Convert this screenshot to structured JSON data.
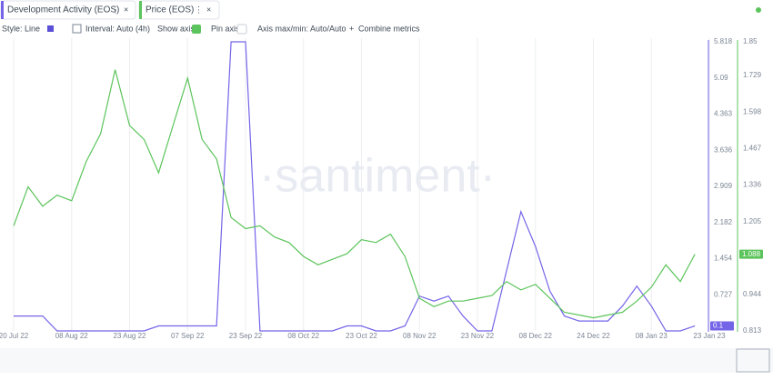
{
  "ui": {
    "toolbar": {
      "style": "Style: Line",
      "interval": "Interval: Auto (4h)",
      "show_axis": "Show axis",
      "pin_axis": "Pin axis",
      "axis_minmax": "Axis max/min: Auto/Auto",
      "combine": "Combine metrics"
    },
    "watermark": "·santiment·"
  },
  "chart_data": {
    "type": "line",
    "categories": [
      "20 Jul 22",
      null,
      null,
      null,
      "08 Aug 22",
      null,
      null,
      null,
      "23 Aug 22",
      null,
      null,
      null,
      "07 Sep 22",
      null,
      null,
      null,
      "23 Sep 22",
      null,
      null,
      null,
      "08 Oct 22",
      null,
      null,
      null,
      "23 Oct 22",
      null,
      null,
      null,
      "08 Nov 22",
      null,
      null,
      null,
      "23 Nov 22",
      null,
      null,
      null,
      "08 Dec 22",
      null,
      null,
      null,
      "24 Dec 22",
      null,
      null,
      null,
      "08 Jan 23",
      null,
      null,
      null,
      "23 Jan 23"
    ],
    "ylim": [
      0,
      5.818
    ],
    "yticks": [
      0.727,
      1.454,
      2.182,
      2.909,
      3.636,
      4.363,
      5.09,
      5.818
    ],
    "y2lim": [
      0.813,
      1.85
    ],
    "y2ticks": [
      0.813,
      0.944,
      1.205,
      1.336,
      1.467,
      1.598,
      1.729,
      1.85
    ],
    "grid_x": true,
    "series": [
      {
        "name": "Development Activity (EOS)",
        "color": "#7464e8",
        "axis": "y",
        "last_label": "0.1",
        "values": [
          0.3,
          0.3,
          0.3,
          0,
          0,
          0,
          0,
          0,
          0,
          0,
          0.1,
          0.1,
          0.1,
          0.1,
          0.1,
          5.818,
          5.818,
          0,
          0,
          0,
          0,
          0,
          0,
          0.1,
          0.1,
          0,
          0,
          0.1,
          0.7,
          0.6,
          0.7,
          0.3,
          0,
          0,
          1.2,
          2.4,
          1.7,
          0.8,
          0.3,
          0.2,
          0.2,
          0.2,
          0.5,
          0.9,
          0.5,
          0,
          0,
          0.1,
          null
        ]
      },
      {
        "name": "Price (EOS)",
        "color": "#5cc45c",
        "axis": "y2",
        "last_label": "1.088",
        "values": [
          1.19,
          1.33,
          1.26,
          1.3,
          1.28,
          1.42,
          1.52,
          1.75,
          1.55,
          1.5,
          1.38,
          1.55,
          1.72,
          1.5,
          1.43,
          1.22,
          1.18,
          1.19,
          1.15,
          1.13,
          1.08,
          1.05,
          1.07,
          1.09,
          1.14,
          1.13,
          1.16,
          1.08,
          0.93,
          0.9,
          0.92,
          0.92,
          0.93,
          0.94,
          0.99,
          0.96,
          0.98,
          0.93,
          0.88,
          0.87,
          0.86,
          0.87,
          0.88,
          0.92,
          0.97,
          1.05,
          0.99,
          1.088,
          null
        ]
      }
    ]
  }
}
